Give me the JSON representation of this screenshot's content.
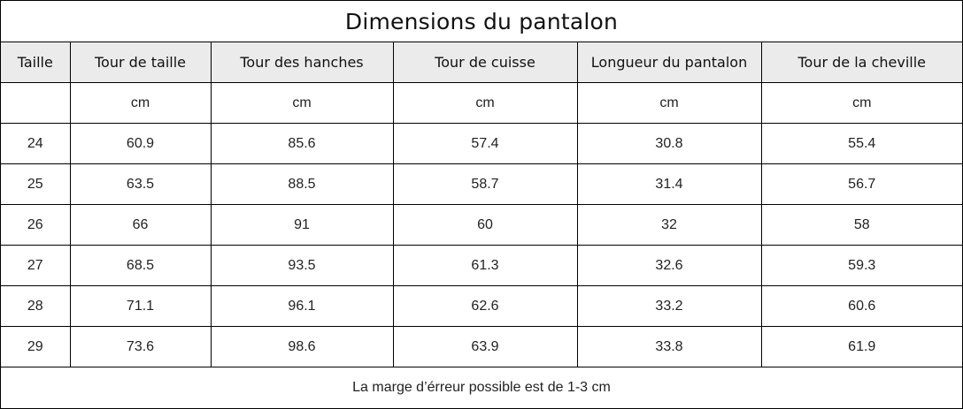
{
  "title": "Dimensions du pantalon",
  "columns": [
    "Taille",
    "Tour de taille",
    "Tour des hanches",
    "Tour de cuisse",
    "Longueur du pantalon",
    "Tour de la cheville"
  ],
  "units": [
    "",
    "cm",
    "cm",
    "cm",
    "cm",
    "cm"
  ],
  "rows": [
    [
      "24",
      "60.9",
      "85.6",
      "57.4",
      "30.8",
      "55.4"
    ],
    [
      "25",
      "63.5",
      "88.5",
      "58.7",
      "31.4",
      "56.7"
    ],
    [
      "26",
      "66",
      "91",
      "60",
      "32",
      "58"
    ],
    [
      "27",
      "68.5",
      "93.5",
      "61.3",
      "32.6",
      "59.3"
    ],
    [
      "28",
      "71.1",
      "96.1",
      "62.6",
      "33.2",
      "60.6"
    ],
    [
      "29",
      "73.6",
      "98.6",
      "63.9",
      "33.8",
      "61.9"
    ]
  ],
  "footer_note": "La marge d’érreur possible est de 1-3 cm"
}
